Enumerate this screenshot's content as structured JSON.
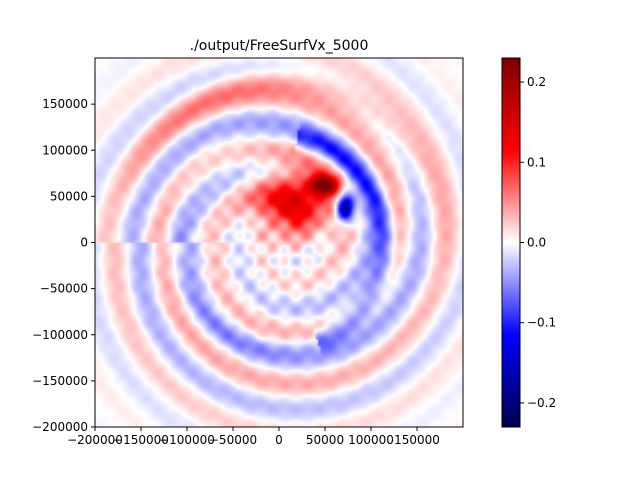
{
  "chart_data": {
    "type": "heatmap",
    "title": "./output/FreeSurfVx_5000",
    "xlabel": "",
    "ylabel": "",
    "xlim": [
      -200000,
      200000
    ],
    "ylim": [
      -200000,
      200000
    ],
    "x_ticks": [
      -200000,
      -150000,
      -100000,
      -50000,
      0,
      50000,
      100000,
      150000
    ],
    "x_tick_labels": [
      "−200000",
      "−150000",
      "−100000",
      "−50000",
      "0",
      "50000",
      "100000",
      "150000"
    ],
    "y_ticks": [
      -200000,
      -150000,
      -100000,
      -50000,
      0,
      50000,
      100000,
      150000
    ],
    "y_tick_labels": [
      "−200000",
      "−150000",
      "−100000",
      "−50000",
      "0",
      "50000",
      "100000",
      "150000"
    ],
    "colormap": "seismic",
    "colorbar": {
      "vmin": -0.23,
      "vmax": 0.23,
      "ticks": [
        -0.2,
        -0.1,
        0.0,
        0.1,
        0.2
      ],
      "tick_labels": [
        "−0.2",
        "−0.1",
        "0.0",
        "0.1",
        "0.2"
      ]
    },
    "features": [
      {
        "name": "positive-lobe",
        "x": 20000,
        "y": 40000,
        "value": 0.1
      },
      {
        "name": "peak-positive",
        "x": 50000,
        "y": 60000,
        "value": 0.2
      },
      {
        "name": "peak-negative",
        "x": 70000,
        "y": 40000,
        "value": -0.22
      }
    ],
    "grid": false
  }
}
